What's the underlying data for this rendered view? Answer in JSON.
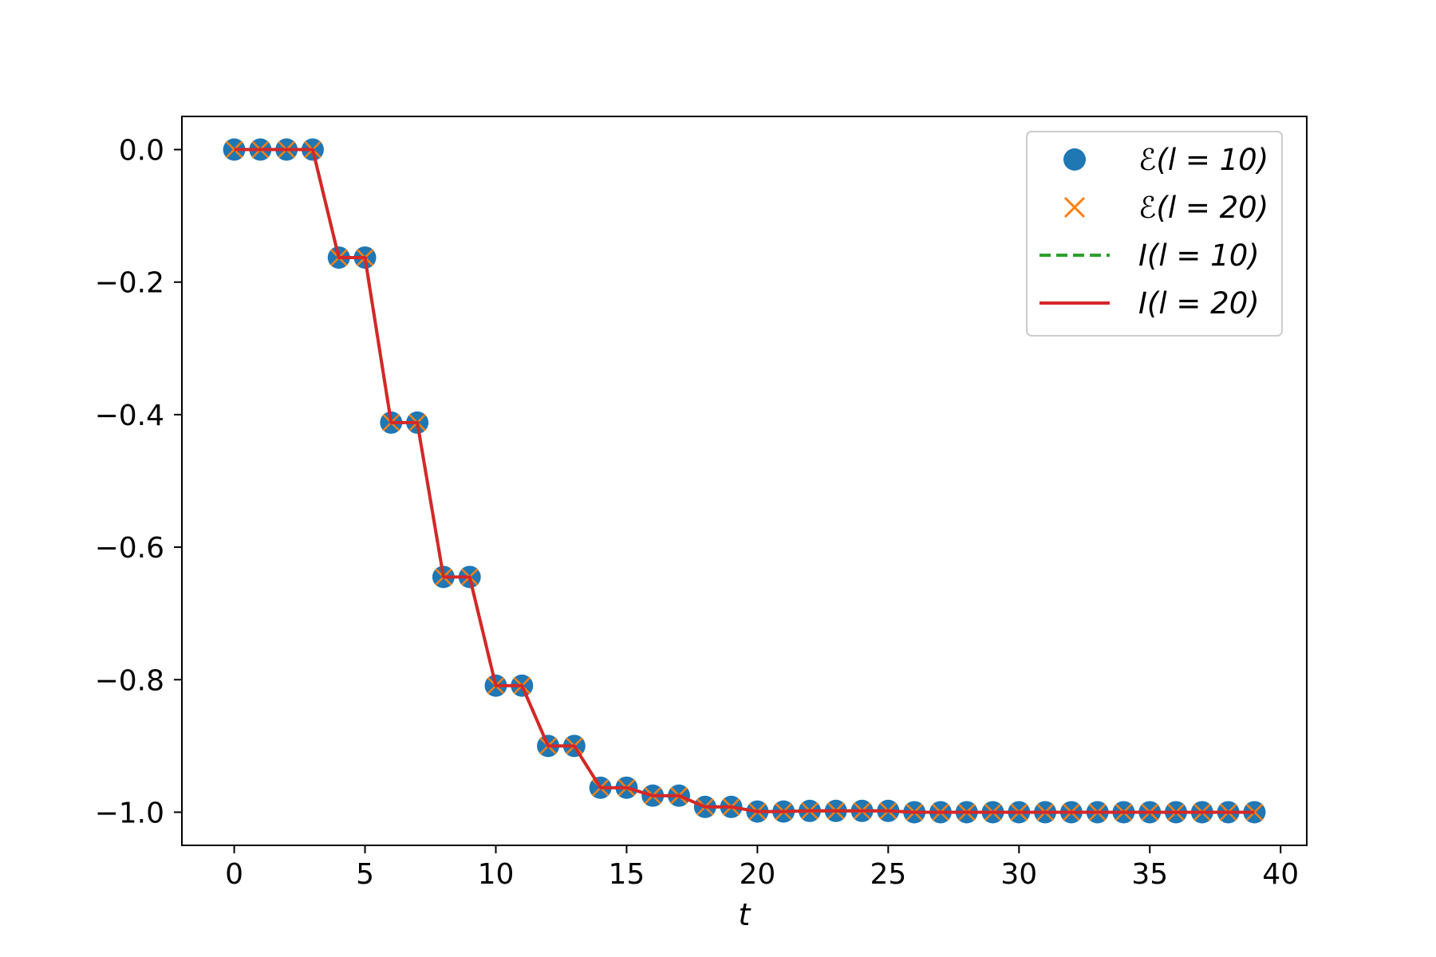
{
  "chart_data": {
    "type": "line",
    "title": "",
    "xlabel": "t",
    "ylabel": "",
    "xlim": [
      -2,
      41
    ],
    "ylim": [
      -1.05,
      0.05
    ],
    "xticks": [
      0,
      5,
      10,
      15,
      20,
      25,
      30,
      35,
      40
    ],
    "xtick_labels": [
      "0",
      "5",
      "10",
      "15",
      "20",
      "25",
      "30",
      "35",
      "40"
    ],
    "yticks": [
      0.0,
      -0.2,
      -0.4,
      -0.6,
      -0.8,
      -1.0
    ],
    "ytick_labels": [
      "0.0",
      "−0.2",
      "−0.4",
      "−0.6",
      "−0.8",
      "−1.0"
    ],
    "grid": false,
    "legend_position": "top-right",
    "x": [
      0,
      1,
      2,
      3,
      4,
      5,
      6,
      7,
      8,
      9,
      10,
      11,
      12,
      13,
      14,
      15,
      16,
      17,
      18,
      19,
      20,
      21,
      22,
      23,
      24,
      25,
      26,
      27,
      28,
      29,
      30,
      31,
      32,
      33,
      34,
      35,
      36,
      37,
      38,
      39
    ],
    "series": [
      {
        "name": "ℰ(l = 10)",
        "style": "marker",
        "marker": "circle",
        "color": "#1f77b4",
        "values": [
          0,
          0,
          0,
          0,
          -0.163,
          -0.163,
          -0.412,
          -0.412,
          -0.645,
          -0.645,
          -0.809,
          -0.809,
          -0.9,
          -0.9,
          -0.963,
          -0.963,
          -0.975,
          -0.975,
          -0.992,
          -0.992,
          -0.999,
          -0.999,
          -0.998,
          -0.998,
          -0.998,
          -0.998,
          -1.0,
          -1.0,
          -1.0,
          -1.0,
          -1.0,
          -1.0,
          -1.0,
          -1.0,
          -1.0,
          -1.0,
          -1.0,
          -1.0,
          -1.0,
          -1.0
        ]
      },
      {
        "name": "ℰ(l = 20)",
        "style": "marker",
        "marker": "x",
        "color": "#ff7f0e",
        "values": [
          0,
          0,
          0,
          0,
          -0.163,
          -0.163,
          -0.412,
          -0.412,
          -0.645,
          -0.645,
          -0.809,
          -0.809,
          -0.9,
          -0.9,
          -0.963,
          -0.963,
          -0.975,
          -0.975,
          -0.992,
          -0.992,
          -0.999,
          -0.999,
          -0.998,
          -0.998,
          -0.998,
          -0.998,
          -1.0,
          -1.0,
          -1.0,
          -1.0,
          -1.0,
          -1.0,
          -1.0,
          -1.0,
          -1.0,
          -1.0,
          -1.0,
          -1.0,
          -1.0,
          -1.0
        ]
      },
      {
        "name": "I(l = 10)",
        "style": "dashed",
        "color": "#2ca02c",
        "values": [
          0,
          0,
          0,
          0,
          -0.163,
          -0.163,
          -0.412,
          -0.412,
          -0.645,
          -0.645,
          -0.809,
          -0.809,
          -0.9,
          -0.9,
          -0.963,
          -0.963,
          -0.975,
          -0.975,
          -0.992,
          -0.992,
          -0.999,
          -0.999,
          -0.998,
          -0.998,
          -0.998,
          -0.998,
          -1.0,
          -1.0,
          -1.0,
          -1.0,
          -1.0,
          -1.0,
          -1.0,
          -1.0,
          -1.0,
          -1.0,
          -1.0,
          -1.0,
          -1.0,
          -1.0
        ]
      },
      {
        "name": "I(l = 20)",
        "style": "solid",
        "color": "#d62728",
        "values": [
          0,
          0,
          0,
          0,
          -0.163,
          -0.163,
          -0.412,
          -0.412,
          -0.645,
          -0.645,
          -0.809,
          -0.809,
          -0.9,
          -0.9,
          -0.963,
          -0.963,
          -0.975,
          -0.975,
          -0.992,
          -0.992,
          -0.999,
          -0.999,
          -0.998,
          -0.998,
          -0.998,
          -0.998,
          -1.0,
          -1.0,
          -1.0,
          -1.0,
          -1.0,
          -1.0,
          -1.0,
          -1.0,
          -1.0,
          -1.0,
          -1.0,
          -1.0,
          -1.0,
          -1.0
        ]
      }
    ]
  }
}
